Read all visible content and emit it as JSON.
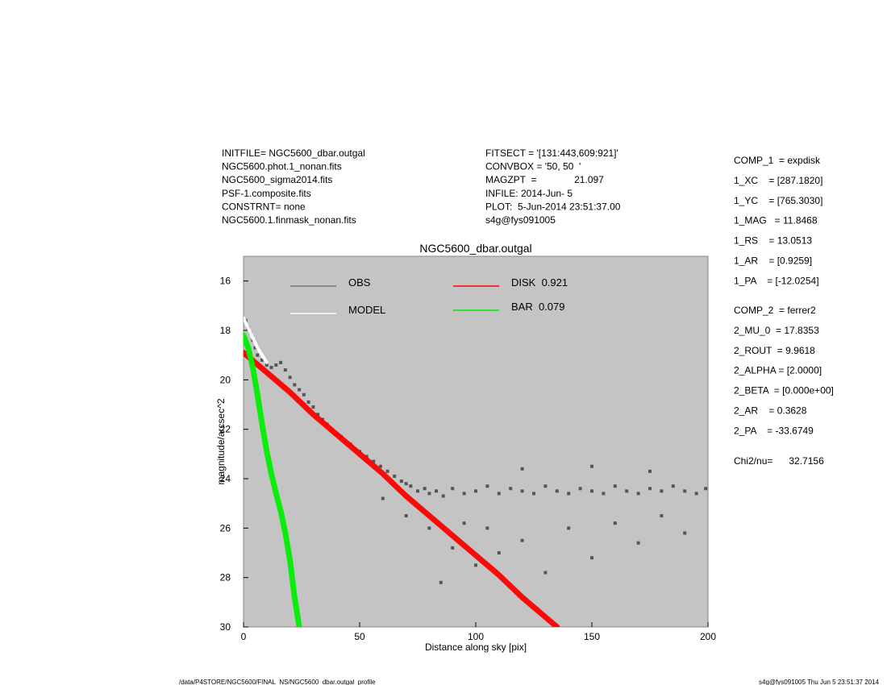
{
  "header": {
    "left": [
      "INITFILE= NGC5600_dbar.outgal",
      "NGC5600.phot.1_nonan.fits",
      "NGC5600_sigma2014.fits",
      "PSF-1.composite.fits",
      "CONSTRNT= none",
      "NGC5600.1.finmask_nonan.fits"
    ],
    "middle": [
      "FITSECT = '[131:443,609:921]'",
      "CONVBOX = '50, 50  '",
      "MAGZPT  =              21.097",
      "INFILE: 2014-Jun- 5",
      "PLOT:  5-Jun-2014 23:51:37.00",
      "s4g@fys091005"
    ],
    "comp1": [
      "COMP_1  = expdisk",
      "1_XC    = [287.1820]",
      "1_YC    = [765.3030]",
      "1_MAG   = 11.8468",
      "1_RS    = 13.0513",
      "1_AR    = [0.9259]",
      "1_PA    = [-12.0254]"
    ],
    "comp2": [
      "COMP_2  = ferrer2",
      "2_MU_0  = 17.8353",
      "2_ROUT  = 9.9618",
      "2_ALPHA = [2.0000]",
      "2_BETA  = [0.000e+00]",
      "2_AR    = 0.3628",
      "2_PA    = -33.6749"
    ],
    "chi": "Chi2/nu=      32.7156"
  },
  "footer": {
    "left": "/data/P4STORE/NGC5600/FINAL_NS/NGC5600_dbar.outgal_profile",
    "right": "s4g@fys091005  Thu Jun  5 23:51:37 2014"
  },
  "chart_data": {
    "type": "scatter",
    "title": "NGC5600_dbar.outgal",
    "x_label": "Distance along sky [pix]",
    "y_label": "magnitude/arcsec^2",
    "xlim": [
      0,
      200
    ],
    "xticks": [
      0,
      50,
      100,
      150,
      200
    ],
    "ylim": [
      15,
      30
    ],
    "yticks": [
      16,
      18,
      20,
      22,
      24,
      26,
      28,
      30
    ],
    "y_inverted": true,
    "background": "#c4c4c4",
    "series": [
      {
        "name": "OBS",
        "color": "#555555",
        "mode": "points",
        "x": [
          1,
          2,
          3,
          4,
          5,
          6,
          8,
          10,
          12,
          14,
          16,
          18,
          20,
          22,
          24,
          26,
          28,
          30,
          32,
          34,
          36,
          38,
          40,
          42,
          44,
          46,
          48,
          50,
          53,
          56,
          59,
          62,
          65,
          68,
          70,
          72,
          75,
          78,
          80,
          83,
          86,
          90,
          95,
          100,
          105,
          110,
          115,
          120,
          125,
          130,
          135,
          140,
          145,
          150,
          155,
          160,
          165,
          170,
          175,
          180,
          185,
          190,
          195,
          199,
          70,
          80,
          90,
          100,
          110,
          120,
          130,
          140,
          150,
          160,
          170,
          180,
          190,
          120,
          150,
          175,
          60,
          85,
          95,
          105
        ],
        "y": [
          17.6,
          17.9,
          18.1,
          18.4,
          18.7,
          19.0,
          19.2,
          19.4,
          19.5,
          19.4,
          19.3,
          19.6,
          19.9,
          20.2,
          20.4,
          20.6,
          20.9,
          21.1,
          21.4,
          21.6,
          21.8,
          22.0,
          22.2,
          22.3,
          22.5,
          22.6,
          22.8,
          22.9,
          23.1,
          23.3,
          23.5,
          23.7,
          23.9,
          24.1,
          24.2,
          24.3,
          24.5,
          24.4,
          24.6,
          24.5,
          24.7,
          24.4,
          24.6,
          24.5,
          24.3,
          24.6,
          24.4,
          24.5,
          24.6,
          24.3,
          24.5,
          24.6,
          24.4,
          24.5,
          24.6,
          24.3,
          24.5,
          24.6,
          24.4,
          24.5,
          24.3,
          24.5,
          24.6,
          24.4,
          25.5,
          26.0,
          26.8,
          27.5,
          27.0,
          26.5,
          27.8,
          26.0,
          27.2,
          25.8,
          26.6,
          25.5,
          26.2,
          23.6,
          23.5,
          23.7,
          24.8,
          28.2,
          25.8,
          26.0
        ]
      },
      {
        "name": "MODEL",
        "color": "#ffffff",
        "mode": "band",
        "x": [
          0,
          2,
          4,
          6,
          8,
          10
        ],
        "y": [
          17.5,
          17.9,
          18.3,
          18.7,
          19.0,
          19.3
        ]
      },
      {
        "name": "DISK  0.921",
        "color": "#ff0000",
        "mode": "band",
        "x": [
          0,
          10,
          20,
          30,
          40,
          50,
          60,
          70,
          80,
          90,
          100,
          110,
          120,
          130,
          135
        ],
        "y": [
          18.9,
          19.7,
          20.5,
          21.4,
          22.2,
          23.0,
          23.8,
          24.7,
          25.5,
          26.3,
          27.1,
          27.9,
          28.8,
          29.6,
          30.0
        ]
      },
      {
        "name": "BAR  0.079",
        "color": "#00ee00",
        "mode": "band",
        "x": [
          0,
          2,
          4,
          6,
          8,
          10,
          12,
          14,
          16,
          18,
          20,
          22,
          24
        ],
        "y": [
          18.2,
          18.7,
          19.5,
          20.6,
          21.8,
          22.9,
          23.8,
          24.6,
          25.3,
          26.2,
          27.3,
          28.8,
          30.0
        ]
      }
    ]
  }
}
